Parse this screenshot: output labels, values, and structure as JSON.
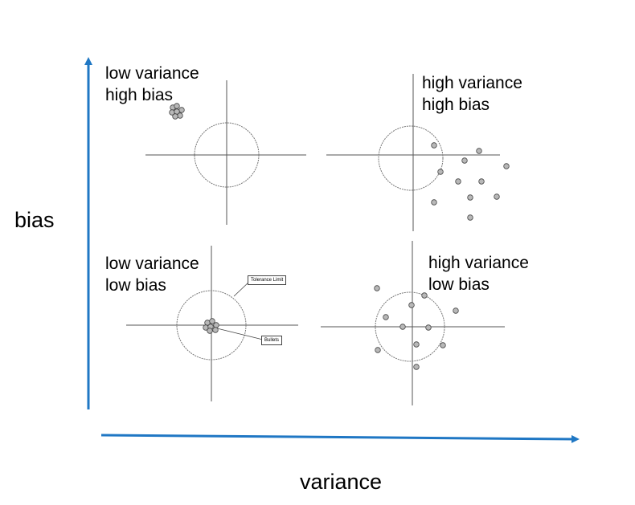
{
  "axes": {
    "y_label": "bias",
    "x_label": "variance",
    "color": "#1f77c4"
  },
  "quadrants": [
    {
      "id": "low-variance-high-bias",
      "line1": "low variance",
      "line2": "high bias"
    },
    {
      "id": "high-variance-high-bias",
      "line1": "high variance",
      "line2": "high bias"
    },
    {
      "id": "low-variance-low-bias",
      "line1": "low variance",
      "line2": "low bias"
    },
    {
      "id": "high-variance-low-bias",
      "line1": "high variance",
      "line2": "low bias"
    }
  ],
  "callouts": {
    "tolerance": "Tolerance Limit",
    "bullets": "Bullets"
  }
}
